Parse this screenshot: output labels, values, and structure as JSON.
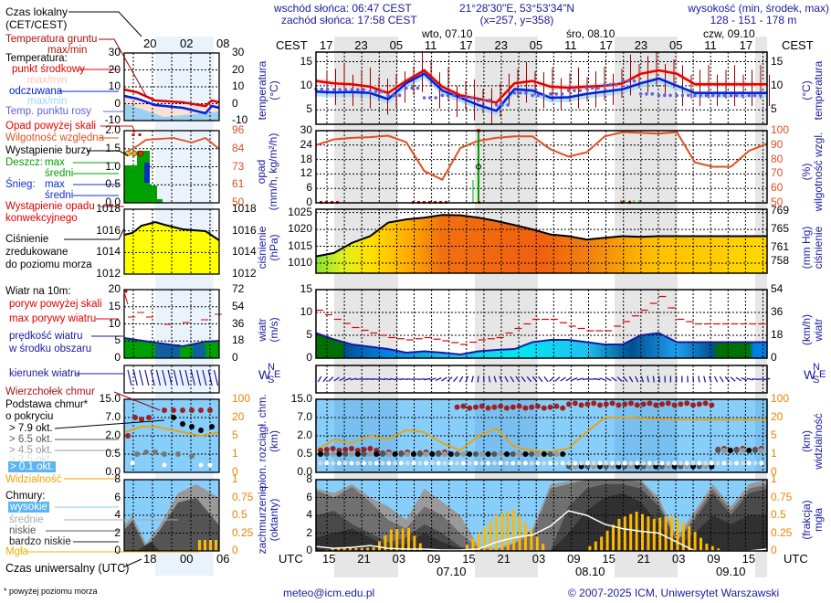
{
  "header": {
    "sunrise": "wschód słońca: 06:47 CEST",
    "sunset": "zachód słońca: 17:58 CEST",
    "coords": "21°28'30\"E, 53°53'34\"N",
    "grid": "(x=257,  y=358)",
    "elevation_label": "wysokość (min, środek, max)",
    "elevation_value": "128 - 151 - 178 m"
  },
  "footer": {
    "email": "meteo@icm.edu.pl",
    "copyright": "© 2007-2025 ICM, Uniwersytet Warszawski",
    "footnote": "* powyżej poziomu morza"
  },
  "timezone": {
    "local": "CEST",
    "utc": "UTC"
  },
  "days": [
    {
      "label": "wto, 07.10",
      "utc_label": "07.10"
    },
    {
      "label": "śro, 08.10",
      "utc_label": "08.10"
    },
    {
      "label": "czw, 09.10",
      "utc_label": "09.10"
    }
  ],
  "local_hours": [
    "17",
    "23",
    "05",
    "11",
    "17",
    "23",
    "05",
    "11",
    "17",
    "23",
    "05",
    "11",
    "17"
  ],
  "utc_hours": [
    "15",
    "21",
    "03",
    "09",
    "15",
    "21",
    "03",
    "09",
    "15",
    "21",
    "03",
    "09",
    "15"
  ],
  "legend": {
    "local_time": "Czas lokalny\n(CET/CEST)",
    "local_time_1": "Czas lokalny",
    "local_time_2": "(CET/CEST)",
    "legend_local_hours": [
      "20",
      "02",
      "08"
    ],
    "legend_utc_hours": [
      "18",
      "00",
      "06"
    ],
    "ground_temp_1": "Temperatura gruntu",
    "ground_temp_2": "max/min",
    "temperature": "Temperatura:",
    "mid_point": "punkt środkowy",
    "maxmin1": "max/min",
    "feels_like": "odczuwana",
    "maxmin2": "max/min",
    "dew_point": "Temp. punktu rosy",
    "precip_over": "Opad powyżej skali",
    "humidity": "Wilgotność względna",
    "storm": "Wystąpienie burzy",
    "rain": "Deszcz:",
    "rain_max": "max",
    "rain_avg": "średni",
    "snow": "Śnieg:",
    "snow_max": "max",
    "snow_avg": "średni",
    "convective_1": "Wystąpienie opadu",
    "convective_2": "konwekcyjnego",
    "pressure_1": "Ciśnienie",
    "pressure_2": "zredukowane",
    "pressure_3": "do poziomu morza",
    "wind_10m": "Wiatr na 10m:",
    "gust_over": "poryw powyżej skali",
    "gust_max": "max porywy wiatru",
    "wind_speed_1": "prędkość wiatru",
    "wind_speed_2": "w środku obszaru",
    "wind_dir": "kierunek wiatru",
    "cloud_top": "Wierzchołek chmur",
    "cloud_base_1": "Podstawa chmur*",
    "cloud_base_2": "o pokryciu",
    "okt79": "> 7.9 okt.",
    "okt65": "> 6.5 okt.",
    "okt45": "> 4.5 okt.",
    "okt25": "> 2.5 okt.",
    "okt01": "> 0.1 okt.",
    "visibility": "Widzialność",
    "clouds": "Chmury:",
    "high": "wysokie",
    "mid": "średnie",
    "low": "niskie",
    "very_low": "bardzo niskie",
    "fog": "Mgła",
    "utc_time": "Czas uniwersalny (UTC)"
  },
  "axis_labels": {
    "temp_left": "temperatura\n(°C)",
    "temp_right": "(°C)\ntemperatura",
    "precip_left": "opad\n(mm/h, kg/m²/h)",
    "precip_right": "(%)\nwilgotność wzgl.",
    "pressure_left": "ciśnienie\n(hPa)",
    "pressure_right": "(mm Hg)\nciśnienie",
    "wind_left": "wiatr\n(m/s)",
    "wind_right": "(km/h)\nwiatr",
    "cloudheight_left": "pion. rozciągł. chm.\n(km)",
    "cloudheight_right": "(km)\nwidzialność",
    "cloudcover_left": "zachmurzenie\n(oktanty)",
    "cloudcover_right": "(frakcja)\nmgła",
    "compass": {
      "N": "N",
      "W": "W",
      "S": "S",
      "E": "E"
    }
  },
  "colors": {
    "temp": "#e00000",
    "feels": "#0020e0",
    "dew": "#6060e0",
    "humidity": "#e05020",
    "rain": "#00a000",
    "snow": "#0030c0",
    "pressure_line": "#000000",
    "gust": "#e00000",
    "wind": "#1a1aa0",
    "visibility": "#f0a000",
    "fog": "#ffb800",
    "night": "#e6e6e6",
    "sky": "#87cefa"
  },
  "chart_data": [
    {
      "type": "line",
      "title": "temperatura",
      "ylabel": "temperatura (°C)",
      "ylim": [
        2,
        17
      ],
      "yticks": [
        5,
        10,
        15
      ],
      "x_hours_local": [
        17,
        20,
        23,
        2,
        5,
        8,
        11,
        14,
        17,
        20,
        23,
        2,
        5,
        8,
        11,
        14,
        17,
        20,
        23,
        2,
        5,
        8,
        11,
        14,
        17,
        20
      ],
      "series": [
        {
          "name": "punkt środkowy",
          "values": [
            11,
            10.5,
            10.3,
            9.8,
            8.5,
            11,
            13.2,
            9.8,
            8,
            7.3,
            6.5,
            10.5,
            11,
            9.8,
            9.6,
            9.8,
            10,
            10.5,
            12.5,
            13.2,
            12.5,
            10.3,
            10.3,
            10.3,
            10.3,
            10.3
          ]
        },
        {
          "name": "odczuwana",
          "values": [
            8.8,
            8.6,
            8.7,
            8.5,
            7.2,
            10.5,
            12.5,
            9,
            7.5,
            6,
            4.8,
            9.3,
            9,
            7.5,
            7.6,
            8.3,
            8.8,
            9.3,
            10.5,
            11.5,
            10,
            8.5,
            8.5,
            8.5,
            8.5,
            8.5
          ]
        },
        {
          "name": "Temp. punktu rosy",
          "values": [
            9.3,
            9.2,
            9.2,
            8.8,
            8.0,
            9.5,
            7.5,
            8,
            7.5,
            7,
            6,
            8.5,
            8,
            8.3,
            9,
            9.5,
            10.2,
            11,
            8.3,
            8,
            8,
            8,
            8,
            8,
            8,
            8
          ]
        }
      ]
    },
    {
      "type": "line",
      "title": "opad / wilgotność",
      "ylabel": "opad (mm/h, kg/m²/h)",
      "ylim": [
        0,
        30
      ],
      "yticks": [
        0,
        6,
        12,
        18,
        24,
        30
      ],
      "y2label": "wilgotność wzgl. (%)",
      "y2lim": [
        50,
        100
      ],
      "y2ticks": [
        50,
        60,
        70,
        80,
        90,
        100
      ],
      "series": [
        {
          "name": "Wilgotność względna",
          "values": [
            90,
            94,
            95,
            95.5,
            96.5,
            92,
            72,
            66,
            88,
            93,
            95,
            96,
            96,
            87,
            82,
            85,
            96,
            99,
            98.5,
            98,
            99,
            78,
            75,
            75,
            86,
            91
          ]
        },
        {
          "name": "Deszcz max",
          "values": [
            0,
            0,
            0,
            0,
            0,
            0,
            0,
            9,
            30,
            0,
            0,
            0,
            0,
            0,
            0,
            0,
            1.3,
            0.8,
            0,
            0.5,
            0,
            0,
            0,
            0,
            0,
            0
          ]
        }
      ]
    },
    {
      "type": "area",
      "title": "ciśnienie",
      "ylabel": "ciśnienie (hPa)",
      "ylim": [
        1007,
        1026
      ],
      "yticks": [
        1010,
        1015,
        1020,
        1025
      ],
      "y2label": "ciśnienie (mm Hg)",
      "y2ticks": [
        758,
        761,
        765,
        769
      ],
      "series": [
        {
          "name": "Ciśnienie zredukowane do poziomu morza",
          "values": [
            1012,
            1013,
            1016,
            1018,
            1022,
            1023,
            1023.5,
            1024.3,
            1024.2,
            1023.5,
            1022.5,
            1021.3,
            1020,
            1018.5,
            1018,
            1017,
            1017.5,
            1018,
            1017.8,
            1018,
            1018,
            1018,
            1018,
            1018,
            1018,
            1018
          ]
        }
      ]
    },
    {
      "type": "area",
      "title": "wiatr",
      "ylabel": "wiatr (m/s)",
      "ylim": [
        0,
        15
      ],
      "yticks": [
        0,
        5,
        10,
        15
      ],
      "y2label": "wiatr (km/h)",
      "y2ticks": [
        0,
        18,
        36,
        54
      ],
      "series": [
        {
          "name": "prędkość wiatru",
          "values": [
            5.5,
            4.1,
            3.0,
            2.5,
            2.0,
            1.2,
            1.5,
            1.2,
            0.8,
            1.5,
            1.8,
            2.0,
            3.5,
            4.0,
            4.0,
            3.5,
            3.0,
            3.0,
            5.0,
            5.5,
            3.5,
            3.5,
            3.5,
            3.5,
            3.5,
            3.5
          ]
        },
        {
          "name": "max porywy wiatru",
          "values": [
            10.5,
            8.5,
            6.7,
            5.5,
            4.5,
            4.0,
            4.5,
            3.8,
            3.0,
            4.0,
            4.5,
            6.5,
            8.5,
            8.5,
            7.0,
            6.0,
            6.0,
            8.0,
            10.5,
            13.5,
            8.5,
            7.5,
            7.5,
            7.5,
            7.5,
            7.5
          ]
        }
      ]
    },
    {
      "type": "scatter",
      "title": "pion. rozciągł. chm.",
      "ylabel": "pion. rozciągł. chm. (km)",
      "yticks": [
        0.0,
        0.5,
        2.0,
        7.0,
        15.0
      ],
      "y2label": "widzialność (km)",
      "y2ticks": [
        0,
        1,
        5,
        20,
        100
      ]
    },
    {
      "type": "area",
      "title": "zachmurzenie",
      "ylabel": "zachmurzenie (oktanty)",
      "ylim": [
        0,
        8
      ],
      "yticks": [
        0,
        2,
        4,
        6,
        8
      ],
      "y2label": "mgła (frakcja)",
      "y2lim": [
        0,
        1
      ],
      "y2ticks": [
        0,
        0.25,
        0.5,
        0.75,
        1
      ],
      "series": [
        {
          "name": "Mgła",
          "values": [
            0,
            0.05,
            0.04,
            0.05,
            0.3,
            0.32,
            0,
            0,
            0,
            0.25,
            0.5,
            0.58,
            0.3,
            0,
            0,
            0,
            0.2,
            0.45,
            0.55,
            0.45,
            0.5,
            0.35,
            0.1,
            0,
            0,
            0
          ]
        }
      ]
    }
  ],
  "meteogram_left_ticks": {
    "temp": [
      "30",
      "20",
      "10",
      "0",
      "-10"
    ],
    "precip": [
      "2.0",
      "1.5",
      "1.0",
      "0.5",
      "0.0"
    ],
    "humidity": [
      "96",
      "84",
      "73",
      "61",
      "50"
    ],
    "pressure": [
      "1018",
      "1016",
      "1014",
      "1012"
    ],
    "wind": [
      "20",
      "15",
      "10",
      "5",
      "0"
    ],
    "wind_kmh": [
      "72",
      "54",
      "36",
      "18",
      "0"
    ],
    "cloudh": [
      "15.0",
      "7.0",
      "2.0",
      "0.5",
      "0.0"
    ],
    "vis": [
      "100",
      "20",
      "5",
      "1",
      "0"
    ],
    "cover": [
      "8",
      "6",
      "4",
      "2",
      "0"
    ],
    "fog": [
      "1",
      "0.75",
      "0.5",
      "0.25",
      "0"
    ]
  }
}
